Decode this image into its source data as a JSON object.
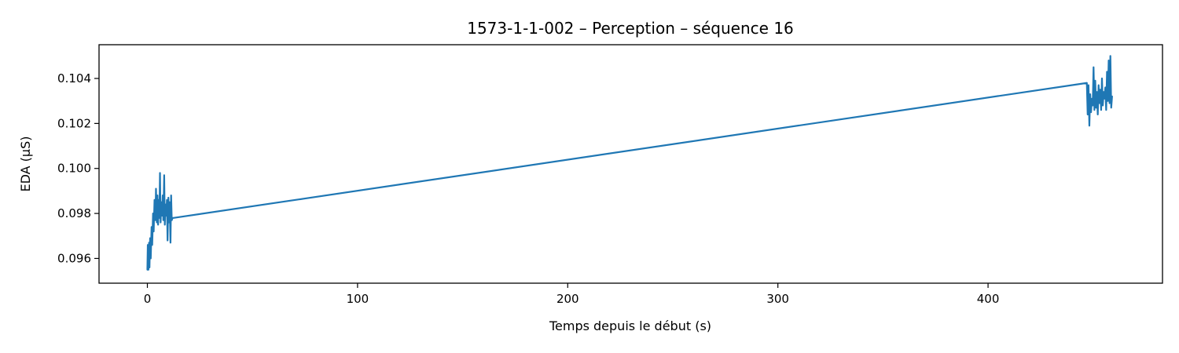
{
  "chart_data": {
    "type": "line",
    "title": "1573-1-1-002 – Perception – séquence 16",
    "xlabel": "Temps depuis le début (s)",
    "ylabel": "EDA (µS)",
    "xlim": [
      -23,
      483
    ],
    "ylim": [
      0.0949,
      0.1055
    ],
    "x_ticks": [
      0,
      100,
      200,
      300,
      400
    ],
    "x_tick_labels": [
      "0",
      "100",
      "200",
      "300",
      "400"
    ],
    "y_ticks": [
      0.096,
      0.098,
      0.1,
      0.102,
      0.104
    ],
    "y_tick_labels": [
      "0.096",
      "0.098",
      "0.100",
      "0.102",
      "0.104"
    ],
    "grid": false,
    "line_color": "#1f77b4",
    "series": [
      {
        "x": [
          0.0,
          0.2,
          0.5,
          0.8,
          1.0,
          1.3,
          1.6,
          2.0,
          2.3,
          2.7,
          3.0,
          3.4,
          3.8,
          4.1,
          4.5,
          4.8,
          5.1,
          5.4,
          5.7,
          6.0,
          6.3,
          6.6,
          7.0,
          7.3,
          7.6,
          8.0,
          8.3,
          8.6,
          9.0,
          9.3,
          9.6,
          10.0,
          10.3,
          10.6,
          11.0,
          11.3,
          11.6,
          12.0,
          12.4,
          447.0,
          447.4,
          447.8,
          448.2,
          448.6,
          449.0,
          449.4,
          449.8,
          450.2,
          450.6,
          451.0,
          451.4,
          451.8,
          452.2,
          452.6,
          453.0,
          453.4,
          453.8,
          454.2,
          454.6,
          455.0,
          455.4,
          455.8,
          456.2,
          456.6,
          457.0,
          457.4,
          457.8,
          458.2,
          458.6,
          459.0
        ],
        "y": [
          0.0955,
          0.0966,
          0.0955,
          0.0967,
          0.0956,
          0.0969,
          0.096,
          0.0974,
          0.0966,
          0.098,
          0.0972,
          0.0986,
          0.0977,
          0.0991,
          0.0976,
          0.0988,
          0.0975,
          0.0986,
          0.0978,
          0.0998,
          0.0976,
          0.0985,
          0.0979,
          0.0988,
          0.0977,
          0.0997,
          0.0975,
          0.0984,
          0.0979,
          0.0986,
          0.0968,
          0.0987,
          0.0976,
          0.0985,
          0.0967,
          0.0988,
          0.0977,
          0.0978,
          0.0978,
          0.1038,
          0.1024,
          0.1037,
          0.1019,
          0.1033,
          0.1025,
          0.1031,
          0.1028,
          0.1045,
          0.1026,
          0.1039,
          0.1027,
          0.1034,
          0.1024,
          0.1037,
          0.1029,
          0.1035,
          0.1026,
          0.104,
          0.1028,
          0.1034,
          0.1031,
          0.1036,
          0.1026,
          0.1043,
          0.103,
          0.1048,
          0.1029,
          0.105,
          0.1027,
          0.1032
        ]
      }
    ]
  }
}
